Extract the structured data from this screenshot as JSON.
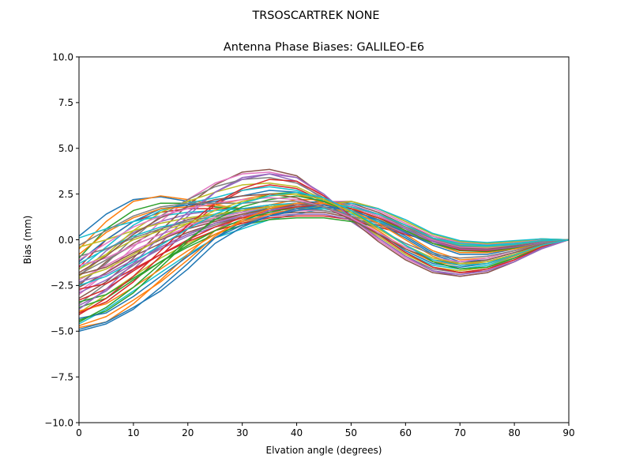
{
  "chart_data": {
    "type": "line",
    "suptitle": "TRSOSCARTREK    NONE",
    "title": "Antenna Phase Biases: GALILEO-E6",
    "xlabel": "Elvation angle (degrees)",
    "ylabel": "Bias (mm)",
    "xlim": [
      0,
      90
    ],
    "ylim": [
      -10,
      10
    ],
    "xticks": [
      0,
      10,
      20,
      30,
      40,
      50,
      60,
      70,
      80,
      90
    ],
    "yticks": [
      -10.0,
      -7.5,
      -5.0,
      -2.5,
      0.0,
      2.5,
      5.0,
      7.5,
      10.0
    ],
    "ytick_labels": [
      "−10.0",
      "−7.5",
      "−5.0",
      "−2.5",
      "0.0",
      "2.5",
      "5.0",
      "7.5",
      "10.0"
    ],
    "grid": false,
    "legend": "none",
    "x": [
      0,
      5,
      10,
      15,
      20,
      25,
      30,
      35,
      40,
      45,
      50,
      55,
      60,
      65,
      70,
      75,
      80,
      85,
      90
    ],
    "colors": [
      "#1f77b4",
      "#ff7f0e",
      "#2ca02c",
      "#d62728",
      "#9467bd",
      "#8c564b",
      "#e377c2",
      "#7f7f7f",
      "#bcbd22",
      "#17becf"
    ],
    "series": [
      {
        "values": [
          0.2,
          1.4,
          2.2,
          2.35,
          2.1,
          1.8,
          1.6,
          1.5,
          1.6,
          1.7,
          1.5,
          1.0,
          0.4,
          -0.2,
          -0.5,
          -0.5,
          -0.3,
          -0.1,
          0.0
        ]
      },
      {
        "values": [
          -0.5,
          1.0,
          2.1,
          2.4,
          2.2,
          1.9,
          1.7,
          1.6,
          1.7,
          1.8,
          1.6,
          1.1,
          0.5,
          -0.1,
          -0.4,
          -0.45,
          -0.3,
          -0.1,
          0.0
        ]
      },
      {
        "values": [
          -1.0,
          0.6,
          1.6,
          2.0,
          2.0,
          1.8,
          1.7,
          1.7,
          1.8,
          1.9,
          1.7,
          1.2,
          0.6,
          0.0,
          -0.3,
          -0.4,
          -0.3,
          -0.1,
          0.0
        ]
      },
      {
        "values": [
          -1.5,
          0.0,
          1.0,
          1.5,
          1.7,
          1.7,
          1.7,
          1.8,
          1.9,
          2.0,
          1.8,
          1.3,
          0.7,
          0.1,
          -0.3,
          -0.35,
          -0.25,
          -0.1,
          0.0
        ]
      },
      {
        "values": [
          -2.0,
          -0.6,
          0.4,
          1.0,
          1.4,
          1.6,
          1.7,
          1.9,
          2.0,
          2.1,
          1.9,
          1.4,
          0.8,
          0.1,
          -0.2,
          -0.3,
          -0.2,
          -0.05,
          0.0
        ]
      },
      {
        "values": [
          -2.5,
          -1.2,
          -0.2,
          0.6,
          1.1,
          1.4,
          1.6,
          1.8,
          2.0,
          2.1,
          2.0,
          1.5,
          0.8,
          0.2,
          -0.2,
          -0.3,
          -0.2,
          -0.05,
          0.0
        ]
      },
      {
        "values": [
          -3.0,
          -1.8,
          -0.8,
          0.1,
          0.7,
          1.1,
          1.4,
          1.7,
          1.9,
          2.1,
          2.1,
          1.6,
          0.9,
          0.2,
          -0.15,
          -0.25,
          -0.15,
          0.0,
          0.0
        ]
      },
      {
        "values": [
          -3.5,
          -2.4,
          -1.4,
          -0.4,
          0.3,
          0.8,
          1.2,
          1.5,
          1.8,
          2.0,
          2.1,
          1.7,
          1.0,
          0.3,
          -0.1,
          -0.2,
          -0.1,
          0.05,
          0.0
        ]
      },
      {
        "values": [
          -4.0,
          -3.0,
          -2.0,
          -1.0,
          -0.2,
          0.5,
          0.9,
          1.3,
          1.6,
          1.9,
          2.1,
          1.7,
          1.0,
          0.3,
          -0.1,
          -0.2,
          -0.1,
          0.05,
          0.0
        ]
      },
      {
        "values": [
          -4.6,
          -3.8,
          -2.8,
          -1.8,
          -0.8,
          0.1,
          0.6,
          1.1,
          1.4,
          1.7,
          2.0,
          1.7,
          1.1,
          0.35,
          -0.05,
          -0.15,
          -0.05,
          0.05,
          0.0
        ]
      },
      {
        "values": [
          -5.0,
          -4.6,
          -3.8,
          -2.6,
          -1.3,
          0.1,
          1.0,
          1.6,
          2.0,
          2.1,
          1.7,
          1.0,
          0.2,
          -0.7,
          -1.2,
          -1.1,
          -0.7,
          -0.3,
          0.0
        ]
      },
      {
        "values": [
          -4.8,
          -4.5,
          -3.5,
          -2.2,
          -0.8,
          0.5,
          1.3,
          1.9,
          2.2,
          2.2,
          1.8,
          1.1,
          0.3,
          -0.6,
          -1.1,
          -1.0,
          -0.6,
          -0.25,
          0.0
        ]
      },
      {
        "values": [
          -4.4,
          -3.9,
          -2.9,
          -1.5,
          -0.1,
          1.2,
          2.0,
          2.5,
          2.6,
          2.2,
          1.5,
          0.7,
          -0.3,
          -1.2,
          -1.6,
          -1.5,
          -1.0,
          -0.4,
          0.0
        ]
      },
      {
        "values": [
          -4.0,
          -3.4,
          -2.3,
          -0.9,
          0.6,
          1.9,
          2.7,
          3.0,
          2.8,
          2.1,
          1.2,
          0.3,
          -0.7,
          -1.5,
          -1.8,
          -1.7,
          -1.1,
          -0.4,
          0.0
        ]
      },
      {
        "values": [
          -3.6,
          -2.8,
          -1.6,
          -0.2,
          1.3,
          2.6,
          3.4,
          3.6,
          3.2,
          2.2,
          1.0,
          0.0,
          -1.0,
          -1.7,
          -2.0,
          -1.8,
          -1.2,
          -0.5,
          0.0
        ]
      },
      {
        "values": [
          -3.2,
          -2.3,
          -1.0,
          0.5,
          1.9,
          3.0,
          3.7,
          3.85,
          3.5,
          2.4,
          1.1,
          -0.1,
          -1.1,
          -1.8,
          -2.0,
          -1.8,
          -1.2,
          -0.45,
          0.0
        ]
      },
      {
        "values": [
          -2.8,
          -1.8,
          -0.4,
          1.0,
          2.2,
          3.1,
          3.6,
          3.7,
          3.4,
          2.4,
          1.2,
          0.0,
          -1.0,
          -1.7,
          -1.9,
          -1.7,
          -1.1,
          -0.4,
          0.0
        ]
      },
      {
        "values": [
          -2.4,
          -1.3,
          0.1,
          1.3,
          2.2,
          2.9,
          3.3,
          3.4,
          3.1,
          2.3,
          1.2,
          0.1,
          -0.9,
          -1.6,
          -1.8,
          -1.6,
          -1.0,
          -0.35,
          0.0
        ]
      },
      {
        "values": [
          -2.0,
          -0.8,
          0.5,
          1.5,
          2.1,
          2.6,
          3.0,
          3.1,
          2.9,
          2.2,
          1.2,
          0.2,
          -0.8,
          -1.5,
          -1.7,
          -1.5,
          -0.9,
          -0.3,
          0.0
        ]
      },
      {
        "values": [
          -1.6,
          -0.4,
          0.8,
          1.6,
          2.0,
          2.3,
          2.7,
          2.9,
          2.7,
          2.1,
          1.2,
          0.3,
          -0.7,
          -1.4,
          -1.6,
          -1.4,
          -0.9,
          -0.3,
          0.0
        ]
      },
      {
        "values": [
          -1.2,
          0.0,
          1.0,
          1.7,
          1.9,
          2.1,
          2.4,
          2.7,
          2.6,
          2.0,
          1.2,
          0.4,
          -0.6,
          -1.3,
          -1.5,
          -1.3,
          -0.8,
          -0.3,
          0.0
        ]
      },
      {
        "values": [
          -0.8,
          0.4,
          1.2,
          1.7,
          1.8,
          1.9,
          2.2,
          2.5,
          2.5,
          2.0,
          1.3,
          0.5,
          -0.5,
          -1.2,
          -1.4,
          -1.2,
          -0.8,
          -0.25,
          0.0
        ]
      },
      {
        "values": [
          -3.7,
          -3.2,
          -2.2,
          -1.2,
          -0.4,
          0.3,
          0.8,
          1.1,
          1.2,
          1.2,
          1.0,
          0.7,
          0.3,
          -0.1,
          -0.4,
          -0.45,
          -0.3,
          -0.1,
          0.0
        ]
      },
      {
        "values": [
          -3.3,
          -2.7,
          -1.7,
          -0.8,
          -0.1,
          0.5,
          0.9,
          1.2,
          1.3,
          1.3,
          1.1,
          0.7,
          0.3,
          -0.1,
          -0.4,
          -0.4,
          -0.3,
          -0.1,
          0.0
        ]
      },
      {
        "values": [
          -2.9,
          -2.2,
          -1.3,
          -0.5,
          0.2,
          0.7,
          1.0,
          1.3,
          1.4,
          1.4,
          1.1,
          0.8,
          0.35,
          -0.05,
          -0.35,
          -0.4,
          -0.25,
          -0.1,
          0.0
        ]
      },
      {
        "values": [
          -2.6,
          -1.8,
          -0.9,
          -0.2,
          0.4,
          0.9,
          1.2,
          1.4,
          1.5,
          1.5,
          1.2,
          0.8,
          0.4,
          0.0,
          -0.3,
          -0.35,
          -0.25,
          -0.05,
          0.0
        ]
      },
      {
        "values": [
          -2.2,
          -1.4,
          -0.6,
          0.1,
          0.6,
          1.0,
          1.3,
          1.5,
          1.6,
          1.6,
          1.3,
          0.9,
          0.4,
          0.0,
          -0.3,
          -0.35,
          -0.2,
          -0.05,
          0.0
        ]
      },
      {
        "values": [
          -1.9,
          -1.1,
          -0.3,
          0.3,
          0.8,
          1.1,
          1.4,
          1.6,
          1.7,
          1.6,
          1.3,
          0.9,
          0.45,
          0.05,
          -0.25,
          -0.3,
          -0.2,
          -0.05,
          0.0
        ]
      },
      {
        "values": [
          -1.6,
          -0.8,
          0.0,
          0.5,
          0.9,
          1.2,
          1.5,
          1.7,
          1.8,
          1.7,
          1.4,
          1.0,
          0.5,
          0.05,
          -0.25,
          -0.3,
          -0.2,
          -0.05,
          0.0
        ]
      },
      {
        "values": [
          -1.3,
          -0.5,
          0.2,
          0.7,
          1.0,
          1.3,
          1.5,
          1.7,
          1.8,
          1.7,
          1.4,
          1.0,
          0.5,
          0.1,
          -0.2,
          -0.3,
          -0.2,
          -0.05,
          0.0
        ]
      },
      {
        "values": [
          -4.3,
          -4.0,
          -3.1,
          -2.0,
          -0.9,
          0.1,
          0.8,
          1.3,
          1.6,
          1.8,
          1.6,
          1.1,
          0.4,
          -0.3,
          -0.8,
          -0.8,
          -0.5,
          -0.2,
          0.0
        ]
      },
      {
        "values": [
          -3.9,
          -3.5,
          -2.6,
          -1.6,
          -0.6,
          0.3,
          1.0,
          1.4,
          1.7,
          1.9,
          1.7,
          1.2,
          0.5,
          -0.2,
          -0.7,
          -0.7,
          -0.5,
          -0.2,
          0.0
        ]
      },
      {
        "values": [
          -3.4,
          -3.0,
          -2.1,
          -1.2,
          -0.3,
          0.5,
          1.1,
          1.5,
          1.8,
          1.9,
          1.7,
          1.2,
          0.5,
          -0.2,
          -0.6,
          -0.65,
          -0.45,
          -0.15,
          0.0
        ]
      },
      {
        "values": [
          -2.7,
          -2.4,
          -1.6,
          -0.8,
          0.0,
          0.7,
          1.2,
          1.6,
          1.8,
          1.9,
          1.7,
          1.2,
          0.6,
          -0.1,
          -0.55,
          -0.6,
          -0.4,
          -0.15,
          0.0
        ]
      },
      {
        "values": [
          -2.3,
          -1.9,
          -1.1,
          -0.4,
          0.3,
          0.9,
          1.3,
          1.6,
          1.9,
          2.0,
          1.8,
          1.3,
          0.6,
          -0.1,
          -0.5,
          -0.55,
          -0.4,
          -0.15,
          0.0
        ]
      },
      {
        "values": [
          -1.9,
          -1.5,
          -0.7,
          0.0,
          0.6,
          1.0,
          1.4,
          1.7,
          1.9,
          2.0,
          1.8,
          1.3,
          0.7,
          0.0,
          -0.45,
          -0.5,
          -0.35,
          -0.1,
          0.0
        ]
      },
      {
        "values": [
          -1.4,
          -1.0,
          -0.3,
          0.3,
          0.8,
          1.2,
          1.5,
          1.8,
          2.0,
          2.0,
          1.8,
          1.3,
          0.7,
          0.0,
          -0.4,
          -0.45,
          -0.3,
          -0.1,
          0.0
        ]
      },
      {
        "values": [
          -0.9,
          -0.5,
          0.1,
          0.6,
          1.0,
          1.3,
          1.6,
          1.8,
          2.0,
          2.0,
          1.8,
          1.4,
          0.7,
          0.05,
          -0.35,
          -0.4,
          -0.3,
          -0.1,
          0.0
        ]
      },
      {
        "values": [
          -0.4,
          0.0,
          0.5,
          0.9,
          1.2,
          1.4,
          1.6,
          1.8,
          2.0,
          2.0,
          1.8,
          1.4,
          0.8,
          0.1,
          -0.3,
          -0.4,
          -0.25,
          -0.05,
          0.0
        ]
      },
      {
        "values": [
          0.1,
          0.6,
          1.0,
          1.3,
          1.5,
          1.6,
          1.7,
          1.9,
          2.0,
          2.0,
          1.8,
          1.4,
          0.8,
          0.1,
          -0.3,
          -0.35,
          -0.25,
          -0.05,
          0.0
        ]
      },
      {
        "values": [
          -4.9,
          -4.5,
          -3.7,
          -2.8,
          -1.6,
          -0.2,
          0.7,
          1.3,
          1.7,
          1.9,
          1.6,
          0.9,
          0.1,
          -0.8,
          -1.3,
          -1.2,
          -0.8,
          -0.3,
          0.0
        ]
      },
      {
        "values": [
          -4.7,
          -4.2,
          -3.3,
          -2.3,
          -1.1,
          0.2,
          1.1,
          1.7,
          2.0,
          2.0,
          1.6,
          0.9,
          0.0,
          -0.9,
          -1.4,
          -1.3,
          -0.9,
          -0.35,
          0.0
        ]
      },
      {
        "values": [
          -4.5,
          -3.7,
          -2.6,
          -1.3,
          0.0,
          1.1,
          1.8,
          2.2,
          2.4,
          2.1,
          1.5,
          0.7,
          -0.3,
          -1.2,
          -1.6,
          -1.5,
          -1.0,
          -0.4,
          0.0
        ]
      },
      {
        "values": [
          -4.1,
          -3.2,
          -2.0,
          -0.6,
          0.8,
          2.0,
          2.8,
          3.3,
          3.2,
          2.4,
          1.3,
          0.3,
          -0.7,
          -1.5,
          -1.8,
          -1.6,
          -1.1,
          -0.4,
          0.0
        ]
      },
      {
        "values": [
          -3.8,
          -2.7,
          -1.3,
          0.2,
          1.5,
          2.6,
          3.3,
          3.6,
          3.4,
          2.5,
          1.2,
          0.1,
          -0.9,
          -1.7,
          -1.9,
          -1.7,
          -1.2,
          -0.45,
          0.0
        ]
      },
      {
        "values": [
          -1.8,
          -0.9,
          0.3,
          1.2,
          1.8,
          2.2,
          2.4,
          2.5,
          2.3,
          1.8,
          1.1,
          0.3,
          -0.5,
          -1.1,
          -1.3,
          -1.1,
          -0.7,
          -0.25,
          0.0
        ]
      },
      {
        "values": [
          -1.1,
          -0.2,
          0.7,
          1.3,
          1.7,
          2.0,
          2.2,
          2.3,
          2.2,
          1.8,
          1.2,
          0.4,
          -0.4,
          -1.0,
          -1.2,
          -1.0,
          -0.6,
          -0.2,
          0.0
        ]
      },
      {
        "values": [
          -0.3,
          0.5,
          1.3,
          1.8,
          2.0,
          2.0,
          2.0,
          2.1,
          2.1,
          1.8,
          1.3,
          0.6,
          -0.2,
          -0.8,
          -1.0,
          -0.9,
          -0.6,
          -0.2,
          0.0
        ]
      },
      {
        "values": [
          -2.1,
          -1.6,
          -0.8,
          0.1,
          0.9,
          1.6,
          2.1,
          2.4,
          2.5,
          2.2,
          1.5,
          0.6,
          -0.3,
          -1.0,
          -1.3,
          -1.2,
          -0.8,
          -0.3,
          0.0
        ]
      },
      {
        "values": [
          -2.5,
          -2.0,
          -1.2,
          -0.3,
          0.6,
          1.4,
          2.0,
          2.4,
          2.6,
          2.3,
          1.6,
          0.7,
          -0.3,
          -1.1,
          -1.4,
          -1.3,
          -0.85,
          -0.3,
          0.0
        ]
      }
    ]
  }
}
